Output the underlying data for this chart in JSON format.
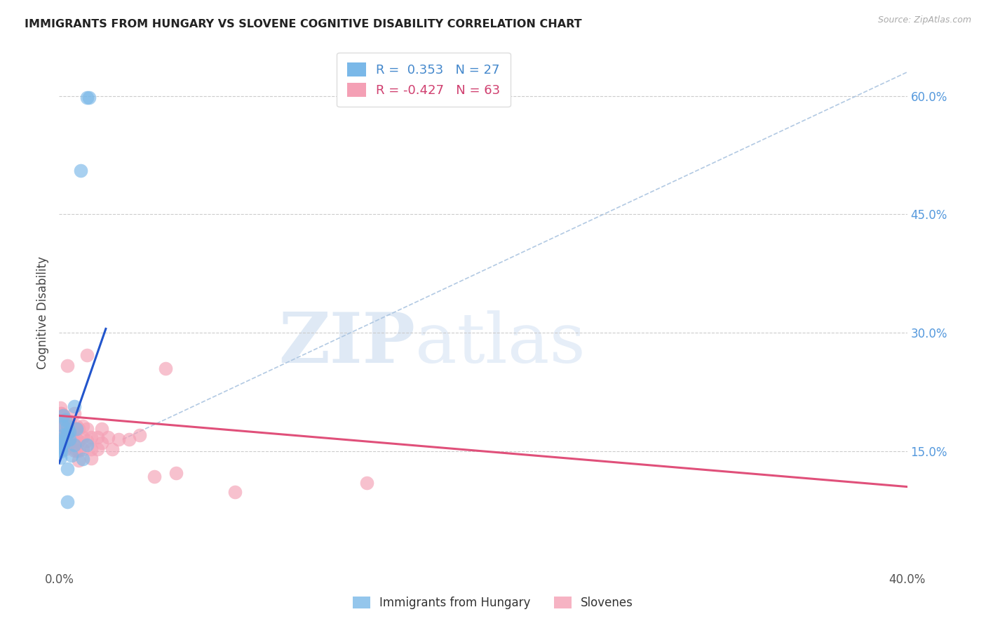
{
  "title": "IMMIGRANTS FROM HUNGARY VS SLOVENE COGNITIVE DISABILITY CORRELATION CHART",
  "source": "Source: ZipAtlas.com",
  "ylabel": "Cognitive Disability",
  "xlim": [
    0.0,
    0.4
  ],
  "ylim": [
    0.0,
    0.65
  ],
  "xticks": [
    0.0,
    0.08,
    0.16,
    0.24,
    0.32,
    0.4
  ],
  "xtick_labels": [
    "0.0%",
    "",
    "",
    "",
    "",
    "40.0%"
  ],
  "ytick_labels_right": [
    0.6,
    0.45,
    0.3,
    0.15
  ],
  "blue_label": "Immigrants from Hungary",
  "pink_label": "Slovenes",
  "blue_R": 0.353,
  "blue_N": 27,
  "pink_R": -0.427,
  "pink_N": 63,
  "blue_color": "#7ab8e8",
  "pink_color": "#f4a0b5",
  "blue_line_color": "#2255cc",
  "pink_line_color": "#e0507a",
  "blue_line": [
    [
      0.0,
      0.135
    ],
    [
      0.022,
      0.305
    ]
  ],
  "pink_line": [
    [
      0.0,
      0.195
    ],
    [
      0.4,
      0.105
    ]
  ],
  "ref_line": [
    [
      0.03,
      0.165
    ],
    [
      0.4,
      0.63
    ]
  ],
  "watermark_zip": "ZIP",
  "watermark_atlas": "atlas",
  "blue_points": [
    [
      0.013,
      0.598
    ],
    [
      0.014,
      0.598
    ],
    [
      0.01,
      0.505
    ],
    [
      0.002,
      0.195
    ],
    [
      0.002,
      0.182
    ],
    [
      0.003,
      0.19
    ],
    [
      0.004,
      0.182
    ],
    [
      0.005,
      0.175
    ],
    [
      0.004,
      0.172
    ],
    [
      0.005,
      0.165
    ],
    [
      0.002,
      0.17
    ],
    [
      0.002,
      0.158
    ],
    [
      0.001,
      0.165
    ],
    [
      0.001,
      0.155
    ],
    [
      0.001,
      0.16
    ],
    [
      0.001,
      0.15
    ],
    [
      0.0005,
      0.162
    ],
    [
      0.0005,
      0.152
    ],
    [
      0.0005,
      0.142
    ],
    [
      0.007,
      0.207
    ],
    [
      0.008,
      0.178
    ],
    [
      0.007,
      0.158
    ],
    [
      0.006,
      0.145
    ],
    [
      0.013,
      0.158
    ],
    [
      0.004,
      0.128
    ],
    [
      0.004,
      0.086
    ],
    [
      0.011,
      0.14
    ]
  ],
  "pink_points": [
    [
      0.0005,
      0.205
    ],
    [
      0.001,
      0.198
    ],
    [
      0.001,
      0.188
    ],
    [
      0.001,
      0.198
    ],
    [
      0.001,
      0.188
    ],
    [
      0.001,
      0.178
    ],
    [
      0.002,
      0.192
    ],
    [
      0.002,
      0.18
    ],
    [
      0.002,
      0.168
    ],
    [
      0.002,
      0.196
    ],
    [
      0.002,
      0.184
    ],
    [
      0.002,
      0.172
    ],
    [
      0.002,
      0.16
    ],
    [
      0.003,
      0.19
    ],
    [
      0.003,
      0.178
    ],
    [
      0.003,
      0.165
    ],
    [
      0.003,
      0.153
    ],
    [
      0.003,
      0.182
    ],
    [
      0.003,
      0.17
    ],
    [
      0.003,
      0.158
    ],
    [
      0.004,
      0.258
    ],
    [
      0.004,
      0.178
    ],
    [
      0.004,
      0.165
    ],
    [
      0.004,
      0.178
    ],
    [
      0.004,
      0.165
    ],
    [
      0.005,
      0.188
    ],
    [
      0.005,
      0.173
    ],
    [
      0.005,
      0.161
    ],
    [
      0.006,
      0.182
    ],
    [
      0.006,
      0.168
    ],
    [
      0.007,
      0.198
    ],
    [
      0.007,
      0.178
    ],
    [
      0.007,
      0.163
    ],
    [
      0.007,
      0.151
    ],
    [
      0.008,
      0.182
    ],
    [
      0.008,
      0.165
    ],
    [
      0.008,
      0.151
    ],
    [
      0.009,
      0.178
    ],
    [
      0.009,
      0.163
    ],
    [
      0.009,
      0.151
    ],
    [
      0.009,
      0.138
    ],
    [
      0.011,
      0.182
    ],
    [
      0.011,
      0.168
    ],
    [
      0.011,
      0.153
    ],
    [
      0.013,
      0.272
    ],
    [
      0.013,
      0.178
    ],
    [
      0.013,
      0.163
    ],
    [
      0.015,
      0.168
    ],
    [
      0.015,
      0.153
    ],
    [
      0.015,
      0.141
    ],
    [
      0.018,
      0.168
    ],
    [
      0.018,
      0.153
    ],
    [
      0.02,
      0.178
    ],
    [
      0.02,
      0.161
    ],
    [
      0.023,
      0.168
    ],
    [
      0.025,
      0.153
    ],
    [
      0.028,
      0.165
    ],
    [
      0.033,
      0.165
    ],
    [
      0.038,
      0.17
    ],
    [
      0.045,
      0.118
    ],
    [
      0.05,
      0.255
    ],
    [
      0.055,
      0.122
    ],
    [
      0.083,
      0.098
    ],
    [
      0.145,
      0.11
    ]
  ]
}
